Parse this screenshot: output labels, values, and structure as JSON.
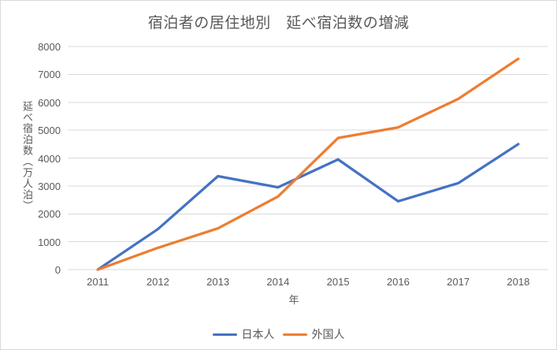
{
  "chart_data": {
    "type": "line",
    "title": "宿泊者の居住地別　延べ宿泊数の増減",
    "xlabel": "年",
    "ylabel": "延べ宿泊数（万人泊）",
    "categories": [
      "2011",
      "2012",
      "2013",
      "2014",
      "2015",
      "2016",
      "2017",
      "2018"
    ],
    "series": [
      {
        "name": "日本人",
        "color": "#4472C4",
        "values": [
          0,
          1450,
          3350,
          2950,
          3950,
          2450,
          3100,
          4500
        ]
      },
      {
        "name": "外国人",
        "color": "#ED7D31",
        "values": [
          0,
          780,
          1480,
          2620,
          4720,
          5100,
          6120,
          7560
        ]
      }
    ],
    "ylim": [
      0,
      8000
    ],
    "ytick_step": 1000,
    "grid": true,
    "legend_position": "bottom",
    "colors": {
      "text": "#595959",
      "gridline": "#D9D9D9",
      "axis_line": "#D9D9D9",
      "background": "#FFFFFF"
    }
  }
}
